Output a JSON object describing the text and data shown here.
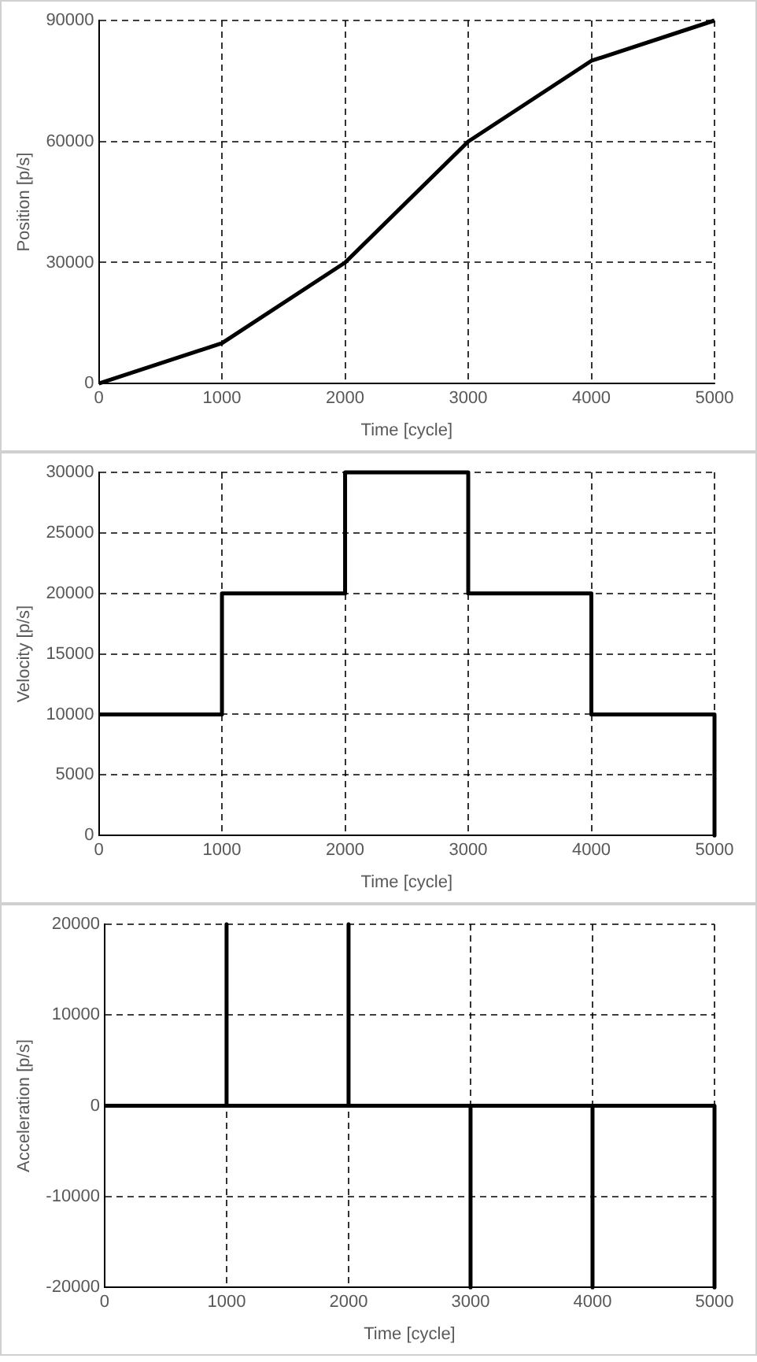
{
  "chart_data": [
    {
      "type": "line",
      "xlabel": "Time [cycle]",
      "ylabel": "Position [p/s]",
      "x": [
        0,
        1000,
        2000,
        3000,
        4000,
        5000
      ],
      "values": [
        0,
        10000,
        30000,
        60000,
        80000,
        90000
      ],
      "color": "#000000",
      "xlim": [
        0,
        5000
      ],
      "xticks": [
        0,
        1000,
        2000,
        3000,
        4000,
        5000
      ],
      "ylim": [
        0,
        90000
      ],
      "yticks": [
        0,
        30000,
        60000,
        90000
      ],
      "grid": true,
      "marker": "none"
    },
    {
      "type": "line",
      "xlabel": "Time [cycle]",
      "ylabel": "Velocity [p/s]",
      "x": [
        0,
        1000,
        1000,
        2000,
        2000,
        3000,
        3000,
        4000,
        4000,
        5000,
        5000
      ],
      "values": [
        10000,
        10000,
        20000,
        20000,
        30000,
        30000,
        20000,
        20000,
        10000,
        10000,
        0
      ],
      "color": "#000000",
      "xlim": [
        0,
        5000
      ],
      "xticks": [
        0,
        1000,
        2000,
        3000,
        4000,
        5000
      ],
      "ylim": [
        0,
        30000
      ],
      "yticks": [
        0,
        5000,
        10000,
        15000,
        20000,
        25000,
        30000
      ],
      "grid": true,
      "marker": "none"
    },
    {
      "type": "line",
      "xlabel": "Time [cycle]",
      "ylabel": "Acceleration [p/s]",
      "x": [
        0,
        1000,
        1000,
        1000,
        2000,
        2000,
        2000,
        3000,
        3000,
        3000,
        4000,
        4000,
        4000,
        5000,
        5000
      ],
      "values": [
        0,
        0,
        20000,
        0,
        0,
        20000,
        0,
        0,
        -20000,
        0,
        0,
        -20000,
        0,
        0,
        -20000
      ],
      "color": "#000000",
      "xlim": [
        0,
        5000
      ],
      "xticks": [
        0,
        1000,
        2000,
        3000,
        4000,
        5000
      ],
      "ylim": [
        -20000,
        20000
      ],
      "yticks": [
        -20000,
        -10000,
        0,
        10000,
        20000
      ],
      "grid": true,
      "marker": "none"
    }
  ]
}
